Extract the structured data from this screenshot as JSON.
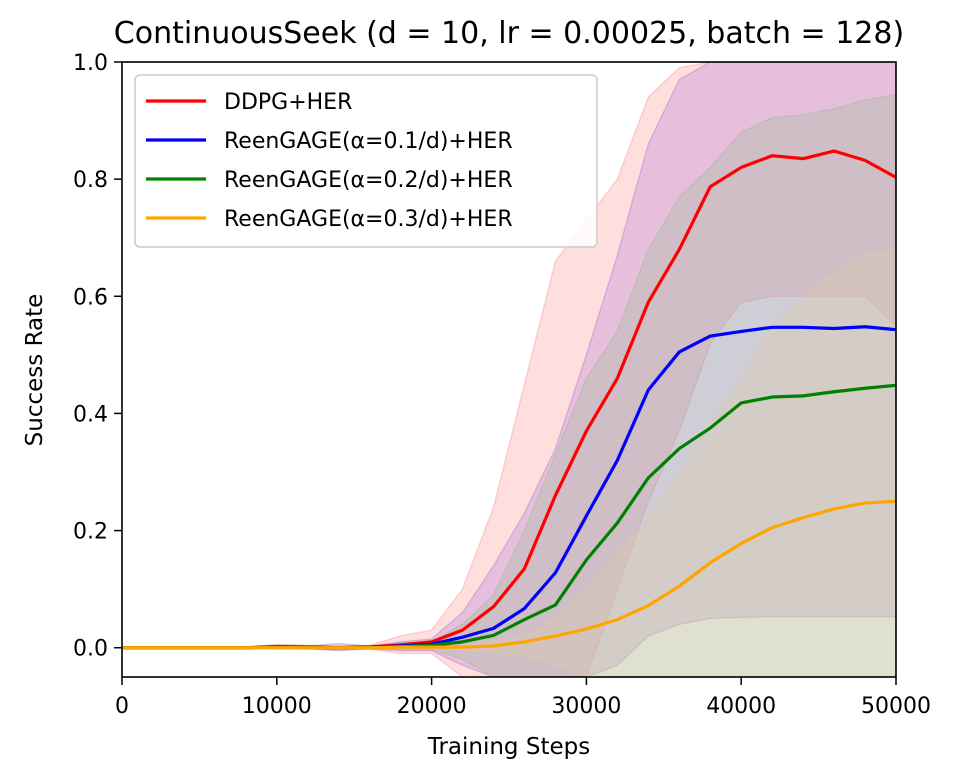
{
  "chart_data": {
    "type": "line",
    "title": "ContinuousSeek (d = 10, lr = 0.00025, batch = 128)",
    "xlabel": "Training Steps",
    "ylabel": "Success Rate",
    "xlim": [
      0,
      50000
    ],
    "ylim": [
      -0.05,
      1.0
    ],
    "xticks": [
      0,
      10000,
      20000,
      30000,
      40000,
      50000
    ],
    "xtick_labels": [
      "0",
      "10000",
      "20000",
      "30000",
      "40000",
      "50000"
    ],
    "yticks": [
      0.0,
      0.2,
      0.4,
      0.6,
      0.8,
      1.0
    ],
    "ytick_labels": [
      "0.0",
      "0.2",
      "0.4",
      "0.6",
      "0.8",
      "1.0"
    ],
    "grid": false,
    "legend_position": "top-left",
    "x": [
      0,
      2000,
      4000,
      6000,
      8000,
      10000,
      12000,
      14000,
      16000,
      18000,
      20000,
      22000,
      24000,
      26000,
      28000,
      30000,
      32000,
      34000,
      36000,
      38000,
      40000,
      42000,
      44000,
      46000,
      48000,
      50000
    ],
    "series": [
      {
        "name": "DDPG+HER",
        "color": "#ff0000",
        "band_color": "#ff9999",
        "values": [
          0,
          0,
          0,
          0,
          0,
          0.002,
          0.001,
          0,
          0.001,
          0.005,
          0.01,
          0.03,
          0.07,
          0.135,
          0.26,
          0.37,
          0.46,
          0.59,
          0.68,
          0.787,
          0.82,
          0.84,
          0.835,
          0.848,
          0.832,
          0.803
        ],
        "upper": [
          0,
          0,
          0,
          0,
          0,
          0.006,
          0.004,
          0.003,
          0.004,
          0.02,
          0.03,
          0.1,
          0.24,
          0.45,
          0.66,
          0.73,
          0.8,
          0.94,
          0.99,
          1.05,
          1.05,
          1.05,
          1.05,
          1.05,
          1.05,
          1.05
        ],
        "lower": [
          0,
          0,
          0,
          0,
          0,
          -0.002,
          -0.002,
          -0.003,
          -0.002,
          -0.01,
          -0.01,
          -0.05,
          -0.1,
          -0.15,
          -0.15,
          -0.1,
          0.1,
          0.25,
          0.37,
          0.52,
          0.59,
          0.6,
          0.6,
          0.6,
          0.6,
          0.55
        ]
      },
      {
        "name": "ReenGAGE(α=0.1/d)+HER",
        "color": "#0000ff",
        "band_color": "#b57cd6",
        "values": [
          0,
          0,
          0,
          0,
          0,
          0.001,
          0.001,
          0,
          0.001,
          0.003,
          0.006,
          0.018,
          0.033,
          0.067,
          0.128,
          0.225,
          0.32,
          0.44,
          0.505,
          0.532,
          0.54,
          0.547,
          0.547,
          0.545,
          0.548,
          0.543
        ],
        "upper": [
          0,
          0,
          0,
          0,
          0,
          0.004,
          0.003,
          0.007,
          0.003,
          0.01,
          0.015,
          0.06,
          0.14,
          0.23,
          0.34,
          0.5,
          0.67,
          0.86,
          0.97,
          1.05,
          1.05,
          1.05,
          1.05,
          1.05,
          1.05,
          1.05
        ],
        "lower": [
          0,
          0,
          0,
          0,
          0,
          -0.002,
          -0.002,
          -0.005,
          -0.002,
          -0.005,
          -0.005,
          -0.03,
          -0.07,
          -0.1,
          -0.09,
          -0.05,
          -0.03,
          0.02,
          0.04,
          0.05,
          0.052,
          0.053,
          0.053,
          0.053,
          0.053,
          0.053
        ]
      },
      {
        "name": "ReenGAGE(α=0.2/d)+HER",
        "color": "#008000",
        "band_color": "#9abf9a",
        "values": [
          0,
          0,
          0,
          0,
          0,
          0.001,
          0,
          0,
          0,
          0.002,
          0.004,
          0.01,
          0.021,
          0.048,
          0.073,
          0.15,
          0.213,
          0.29,
          0.34,
          0.375,
          0.418,
          0.428,
          0.43,
          0.437,
          0.443,
          0.448
        ],
        "upper": [
          0,
          0,
          0,
          0,
          0,
          0.003,
          0.002,
          0.002,
          0.002,
          0.008,
          0.01,
          0.04,
          0.09,
          0.2,
          0.33,
          0.46,
          0.54,
          0.68,
          0.77,
          0.82,
          0.88,
          0.905,
          0.91,
          0.92,
          0.935,
          0.945
        ],
        "lower": [
          0,
          0,
          0,
          0,
          0,
          -0.002,
          -0.002,
          -0.002,
          -0.002,
          -0.004,
          -0.003,
          -0.02,
          -0.05,
          -0.1,
          -0.15,
          -0.16,
          -0.12,
          -0.1,
          -0.09,
          -0.08,
          -0.05,
          -0.05,
          -0.05,
          -0.05,
          -0.05,
          -0.05
        ]
      },
      {
        "name": "ReenGAGE(α=0.3/d)+HER",
        "color": "#ffa500",
        "band_color": "#e0c9a8",
        "values": [
          0,
          0,
          0,
          0,
          0,
          0,
          0,
          0,
          0,
          0.001,
          0.001,
          0.001,
          0.003,
          0.01,
          0.02,
          0.032,
          0.048,
          0.072,
          0.105,
          0.145,
          0.178,
          0.205,
          0.222,
          0.237,
          0.247,
          0.25
        ],
        "upper": [
          0,
          0,
          0,
          0,
          0,
          0.001,
          0.001,
          0.001,
          0.001,
          0.002,
          0.002,
          0.004,
          0.01,
          0.02,
          0.05,
          0.1,
          0.16,
          0.22,
          0.3,
          0.38,
          0.46,
          0.55,
          0.6,
          0.64,
          0.67,
          0.68
        ],
        "lower": [
          0,
          0,
          0,
          0,
          0,
          -0.001,
          -0.001,
          -0.001,
          -0.001,
          -0.001,
          -0.001,
          -0.003,
          -0.008,
          -0.015,
          -0.03,
          -0.05,
          -0.05,
          -0.05,
          -0.05,
          -0.05,
          -0.05,
          -0.05,
          -0.05,
          -0.05,
          -0.05,
          -0.05
        ]
      }
    ]
  }
}
